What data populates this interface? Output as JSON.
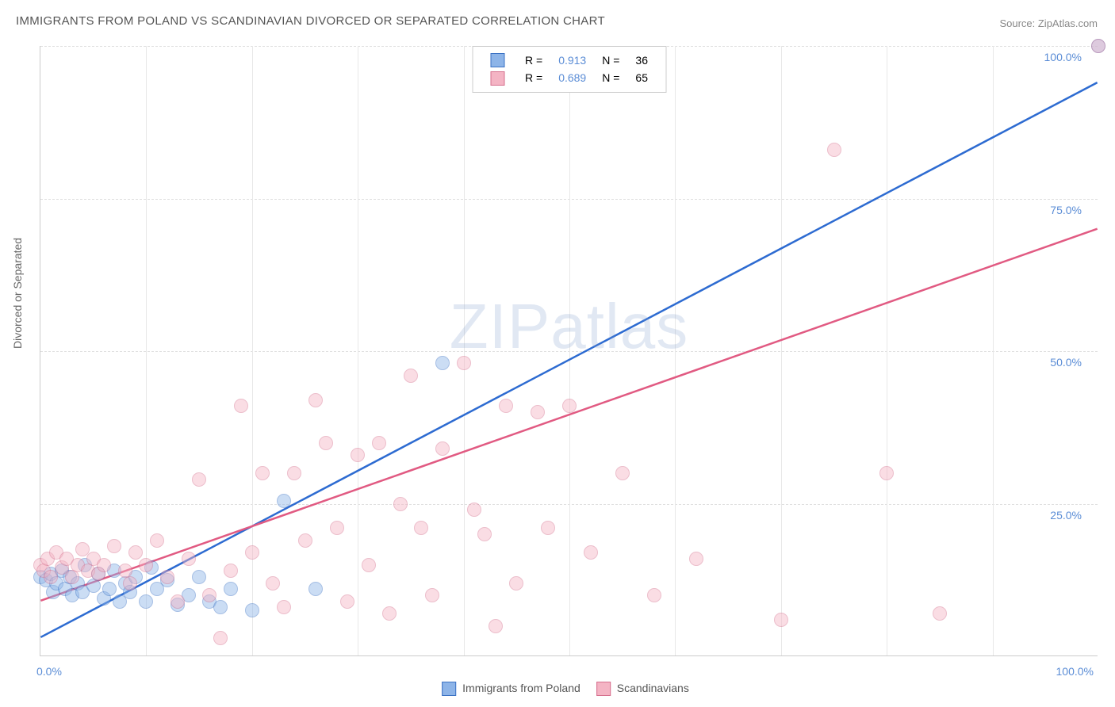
{
  "title": "IMMIGRANTS FROM POLAND VS SCANDINAVIAN DIVORCED OR SEPARATED CORRELATION CHART",
  "source": "Source: ZipAtlas.com",
  "watermark": "ZIPatlas",
  "chart": {
    "type": "scatter",
    "background_color": "#ffffff",
    "grid_color": "#e0e0e0",
    "axis_color": "#cccccc",
    "xlim": [
      0,
      100
    ],
    "ylim": [
      0,
      100
    ],
    "xtick_min_label": "0.0%",
    "xtick_max_label": "100.0%",
    "ytick_labels": [
      "25.0%",
      "50.0%",
      "75.0%",
      "100.0%"
    ],
    "ytick_values": [
      25,
      50,
      75,
      100
    ],
    "ylabel": "Divorced or Separated",
    "label_fontsize": 14,
    "tick_color": "#5b8dd6",
    "marker_radius": 9,
    "marker_opacity": 0.45,
    "series": [
      {
        "name": "Immigrants from Poland",
        "fill_color": "#8db4e8",
        "stroke_color": "#3b72c4",
        "line_color": "#2d6bd1",
        "line_width": 2.5,
        "R": "0.913",
        "N": "36",
        "trend": {
          "x1": 0,
          "y1": 3,
          "x2": 100,
          "y2": 94
        },
        "points": [
          [
            0,
            13
          ],
          [
            0.5,
            12.5
          ],
          [
            1,
            13.5
          ],
          [
            1.2,
            10.5
          ],
          [
            1.5,
            12
          ],
          [
            2,
            14
          ],
          [
            2.3,
            11
          ],
          [
            2.8,
            13
          ],
          [
            3,
            10
          ],
          [
            3.5,
            12
          ],
          [
            4,
            10.5
          ],
          [
            4.2,
            15
          ],
          [
            5,
            11.5
          ],
          [
            5.5,
            13.5
          ],
          [
            6,
            9.5
          ],
          [
            6.5,
            11
          ],
          [
            7,
            14
          ],
          [
            7.5,
            9
          ],
          [
            8,
            12
          ],
          [
            8.5,
            10.5
          ],
          [
            9,
            13
          ],
          [
            10,
            9
          ],
          [
            10.5,
            14.5
          ],
          [
            11,
            11
          ],
          [
            12,
            12.5
          ],
          [
            13,
            8.5
          ],
          [
            14,
            10
          ],
          [
            15,
            13
          ],
          [
            16,
            9
          ],
          [
            17,
            8
          ],
          [
            18,
            11
          ],
          [
            20,
            7.5
          ],
          [
            23,
            25.5
          ],
          [
            26,
            11
          ],
          [
            38,
            48
          ],
          [
            100,
            100
          ]
        ]
      },
      {
        "name": "Scandinavians",
        "fill_color": "#f4b4c4",
        "stroke_color": "#d6708e",
        "line_color": "#e15a82",
        "line_width": 2.5,
        "R": "0.689",
        "N": "65",
        "trend": {
          "x1": 0,
          "y1": 9,
          "x2": 100,
          "y2": 70
        },
        "points": [
          [
            0,
            15
          ],
          [
            0.3,
            14
          ],
          [
            0.7,
            16
          ],
          [
            1,
            13
          ],
          [
            1.5,
            17
          ],
          [
            2,
            14.5
          ],
          [
            2.5,
            16
          ],
          [
            3,
            13
          ],
          [
            3.5,
            15
          ],
          [
            4,
            17.5
          ],
          [
            4.5,
            14
          ],
          [
            5,
            16
          ],
          [
            5.5,
            13.5
          ],
          [
            6,
            15
          ],
          [
            7,
            18
          ],
          [
            8,
            14
          ],
          [
            8.5,
            12
          ],
          [
            9,
            17
          ],
          [
            10,
            15
          ],
          [
            11,
            19
          ],
          [
            12,
            13
          ],
          [
            13,
            9
          ],
          [
            14,
            16
          ],
          [
            15,
            29
          ],
          [
            16,
            10
          ],
          [
            17,
            3
          ],
          [
            18,
            14
          ],
          [
            19,
            41
          ],
          [
            20,
            17
          ],
          [
            21,
            30
          ],
          [
            22,
            12
          ],
          [
            23,
            8
          ],
          [
            24,
            30
          ],
          [
            25,
            19
          ],
          [
            26,
            42
          ],
          [
            27,
            35
          ],
          [
            28,
            21
          ],
          [
            29,
            9
          ],
          [
            30,
            33
          ],
          [
            31,
            15
          ],
          [
            32,
            35
          ],
          [
            33,
            7
          ],
          [
            34,
            25
          ],
          [
            35,
            46
          ],
          [
            36,
            21
          ],
          [
            37,
            10
          ],
          [
            38,
            34
          ],
          [
            40,
            48
          ],
          [
            41,
            24
          ],
          [
            42,
            20
          ],
          [
            43,
            5
          ],
          [
            44,
            41
          ],
          [
            45,
            12
          ],
          [
            47,
            40
          ],
          [
            48,
            21
          ],
          [
            50,
            41
          ],
          [
            52,
            17
          ],
          [
            55,
            30
          ],
          [
            58,
            10
          ],
          [
            62,
            16
          ],
          [
            70,
            6
          ],
          [
            75,
            83
          ],
          [
            80,
            30
          ],
          [
            85,
            7
          ],
          [
            100,
            100
          ]
        ]
      }
    ]
  },
  "legend_bottom": [
    {
      "swatch_fill": "#8db4e8",
      "swatch_stroke": "#3b72c4",
      "label": "Immigrants from Poland"
    },
    {
      "swatch_fill": "#f4b4c4",
      "swatch_stroke": "#d6708e",
      "label": "Scandinavians"
    }
  ]
}
